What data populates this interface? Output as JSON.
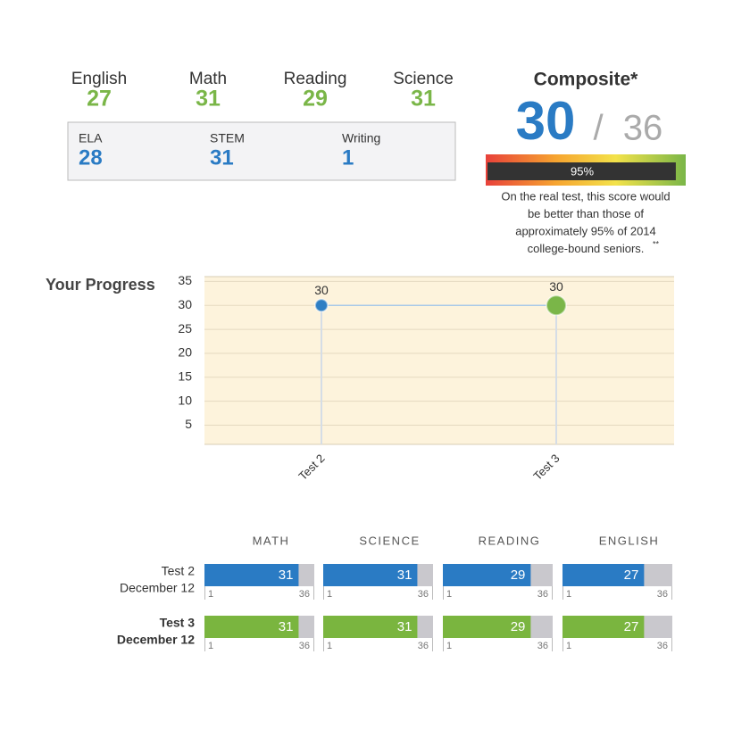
{
  "scores": [
    {
      "label": "English",
      "value": 27
    },
    {
      "label": "Math",
      "value": 31
    },
    {
      "label": "Reading",
      "value": 29
    },
    {
      "label": "Science",
      "value": 31
    }
  ],
  "subscores": [
    {
      "label": "ELA",
      "value": 28
    },
    {
      "label": "STEM",
      "value": 31
    },
    {
      "label": "Writing",
      "value": 1
    }
  ],
  "composite": {
    "label": "Composite*",
    "value": 30,
    "separator": "/",
    "max": 36,
    "percentile": {
      "value": 95,
      "label": "95%"
    },
    "percentile_lim": [
      0,
      100
    ],
    "note_lines": [
      "On the real test, this score would",
      "be better than those of",
      "approximately 95% of 2014",
      "college-bound seniors."
    ],
    "note_mark": "**"
  },
  "chart_data": {
    "type": "line",
    "title": "Your Progress",
    "categories": [
      "Test 2",
      "Test 3"
    ],
    "values": [
      30,
      30
    ],
    "point_colors": [
      "#2f7fc4",
      "#7ab648"
    ],
    "line_color": "#a9c9e8",
    "ylim": [
      1,
      36
    ],
    "yticks": [
      5,
      10,
      15,
      20,
      25,
      30,
      35
    ],
    "grid": true
  },
  "breakdown": {
    "subjects": [
      "MATH",
      "SCIENCE",
      "READING",
      "ENGLISH"
    ],
    "scale": [
      1,
      36
    ],
    "tests": [
      {
        "name": "Test 2",
        "date": "December 12",
        "color": "#2a7bc4",
        "values": [
          31,
          31,
          29,
          27
        ]
      },
      {
        "name": "Test 3",
        "date": "December 12",
        "color": "#7ab53f",
        "values": [
          31,
          31,
          29,
          27
        ]
      }
    ]
  }
}
